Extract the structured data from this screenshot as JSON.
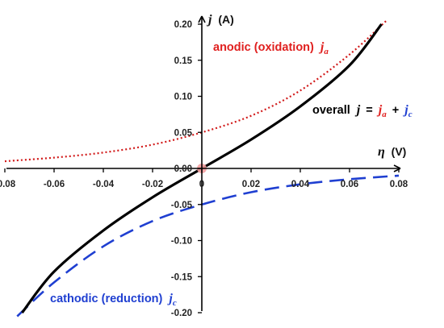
{
  "chart_data": {
    "type": "line",
    "xlabel": {
      "symbol": "η",
      "unit": "(V)"
    },
    "ylabel": {
      "symbol": "j",
      "unit": "(A)"
    },
    "xlim": [
      -0.08,
      0.08
    ],
    "ylim": [
      -0.2,
      0.2
    ],
    "x_ticks": [
      "-0.08",
      "-0.06",
      "-0.04",
      "-0.02",
      "0",
      "0.02",
      "0.04",
      "0.06",
      "0.08"
    ],
    "y_ticks": [
      "0.20",
      "0.15",
      "0.10",
      "0.05",
      "0.00",
      "-0.05",
      "-0.10",
      "-0.15",
      "-0.20"
    ],
    "origin_marker": {
      "x": 0,
      "y": 0,
      "color": "#f4a0a0"
    },
    "series": [
      {
        "key": "anodic",
        "color": "#d11a1a",
        "style": "dotted",
        "x": [
          -0.08,
          -0.06,
          -0.04,
          -0.02,
          0,
          0.02,
          0.04,
          0.06,
          0.075
        ],
        "y": [
          0.01,
          0.015,
          0.022,
          0.033,
          0.05,
          0.073,
          0.108,
          0.158,
          0.205
        ]
      },
      {
        "key": "cathodic",
        "color": "#1f3fd1",
        "style": "dashed",
        "x": [
          -0.075,
          -0.06,
          -0.04,
          -0.02,
          0,
          0.02,
          0.04,
          0.06,
          0.08
        ],
        "y": [
          -0.205,
          -0.158,
          -0.108,
          -0.073,
          -0.05,
          -0.033,
          -0.022,
          -0.015,
          -0.01
        ]
      },
      {
        "key": "overall",
        "color": "#000000",
        "style": "solid",
        "x": [
          -0.073,
          -0.06,
          -0.04,
          -0.02,
          0,
          0.02,
          0.04,
          0.06,
          0.073
        ],
        "y": [
          -0.2,
          -0.143,
          -0.086,
          -0.04,
          0.0,
          0.04,
          0.086,
          0.143,
          0.2
        ]
      }
    ],
    "annotations": {
      "anodic": {
        "text": "anodic (oxidation)",
        "sym": "j",
        "sub": "a",
        "color": "#e0201f"
      },
      "cathodic": {
        "text": "cathodic (reduction)",
        "sym": "j",
        "sub": "c",
        "color": "#1f3fd1"
      },
      "overall": {
        "text": "overall",
        "sym": "j",
        "eq": "=",
        "plus": "+",
        "term1": {
          "sym": "j",
          "sub": "a",
          "color": "#e0201f"
        },
        "term2": {
          "sym": "j",
          "sub": "c",
          "color": "#1f3fd1"
        },
        "color": "#000000"
      }
    }
  }
}
